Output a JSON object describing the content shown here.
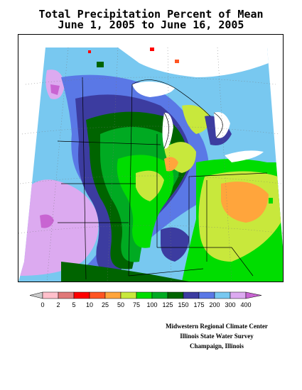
{
  "title": {
    "line1": "Total Precipitation Percent of Mean",
    "line2": "June 1, 2005 to June 16, 2005"
  },
  "legend": {
    "labels": [
      "0",
      "2",
      "5",
      "10",
      "25",
      "50",
      "75",
      "100",
      "125",
      "150",
      "175",
      "200",
      "300",
      "400"
    ],
    "colors": [
      "#ffc0cb",
      "#e07878",
      "#ff0000",
      "#ff5522",
      "#ffa53c",
      "#c8e83c",
      "#00dd00",
      "#00aa22",
      "#006400",
      "#3c3ca0",
      "#5a78e6",
      "#78c8f0",
      "#dcaaf0",
      "#c864d2"
    ]
  },
  "credits": {
    "line1": "Midwestern Regional Climate Center",
    "line2": "Illinois State Water Survey",
    "line3": "Champaign, Illinois"
  }
}
